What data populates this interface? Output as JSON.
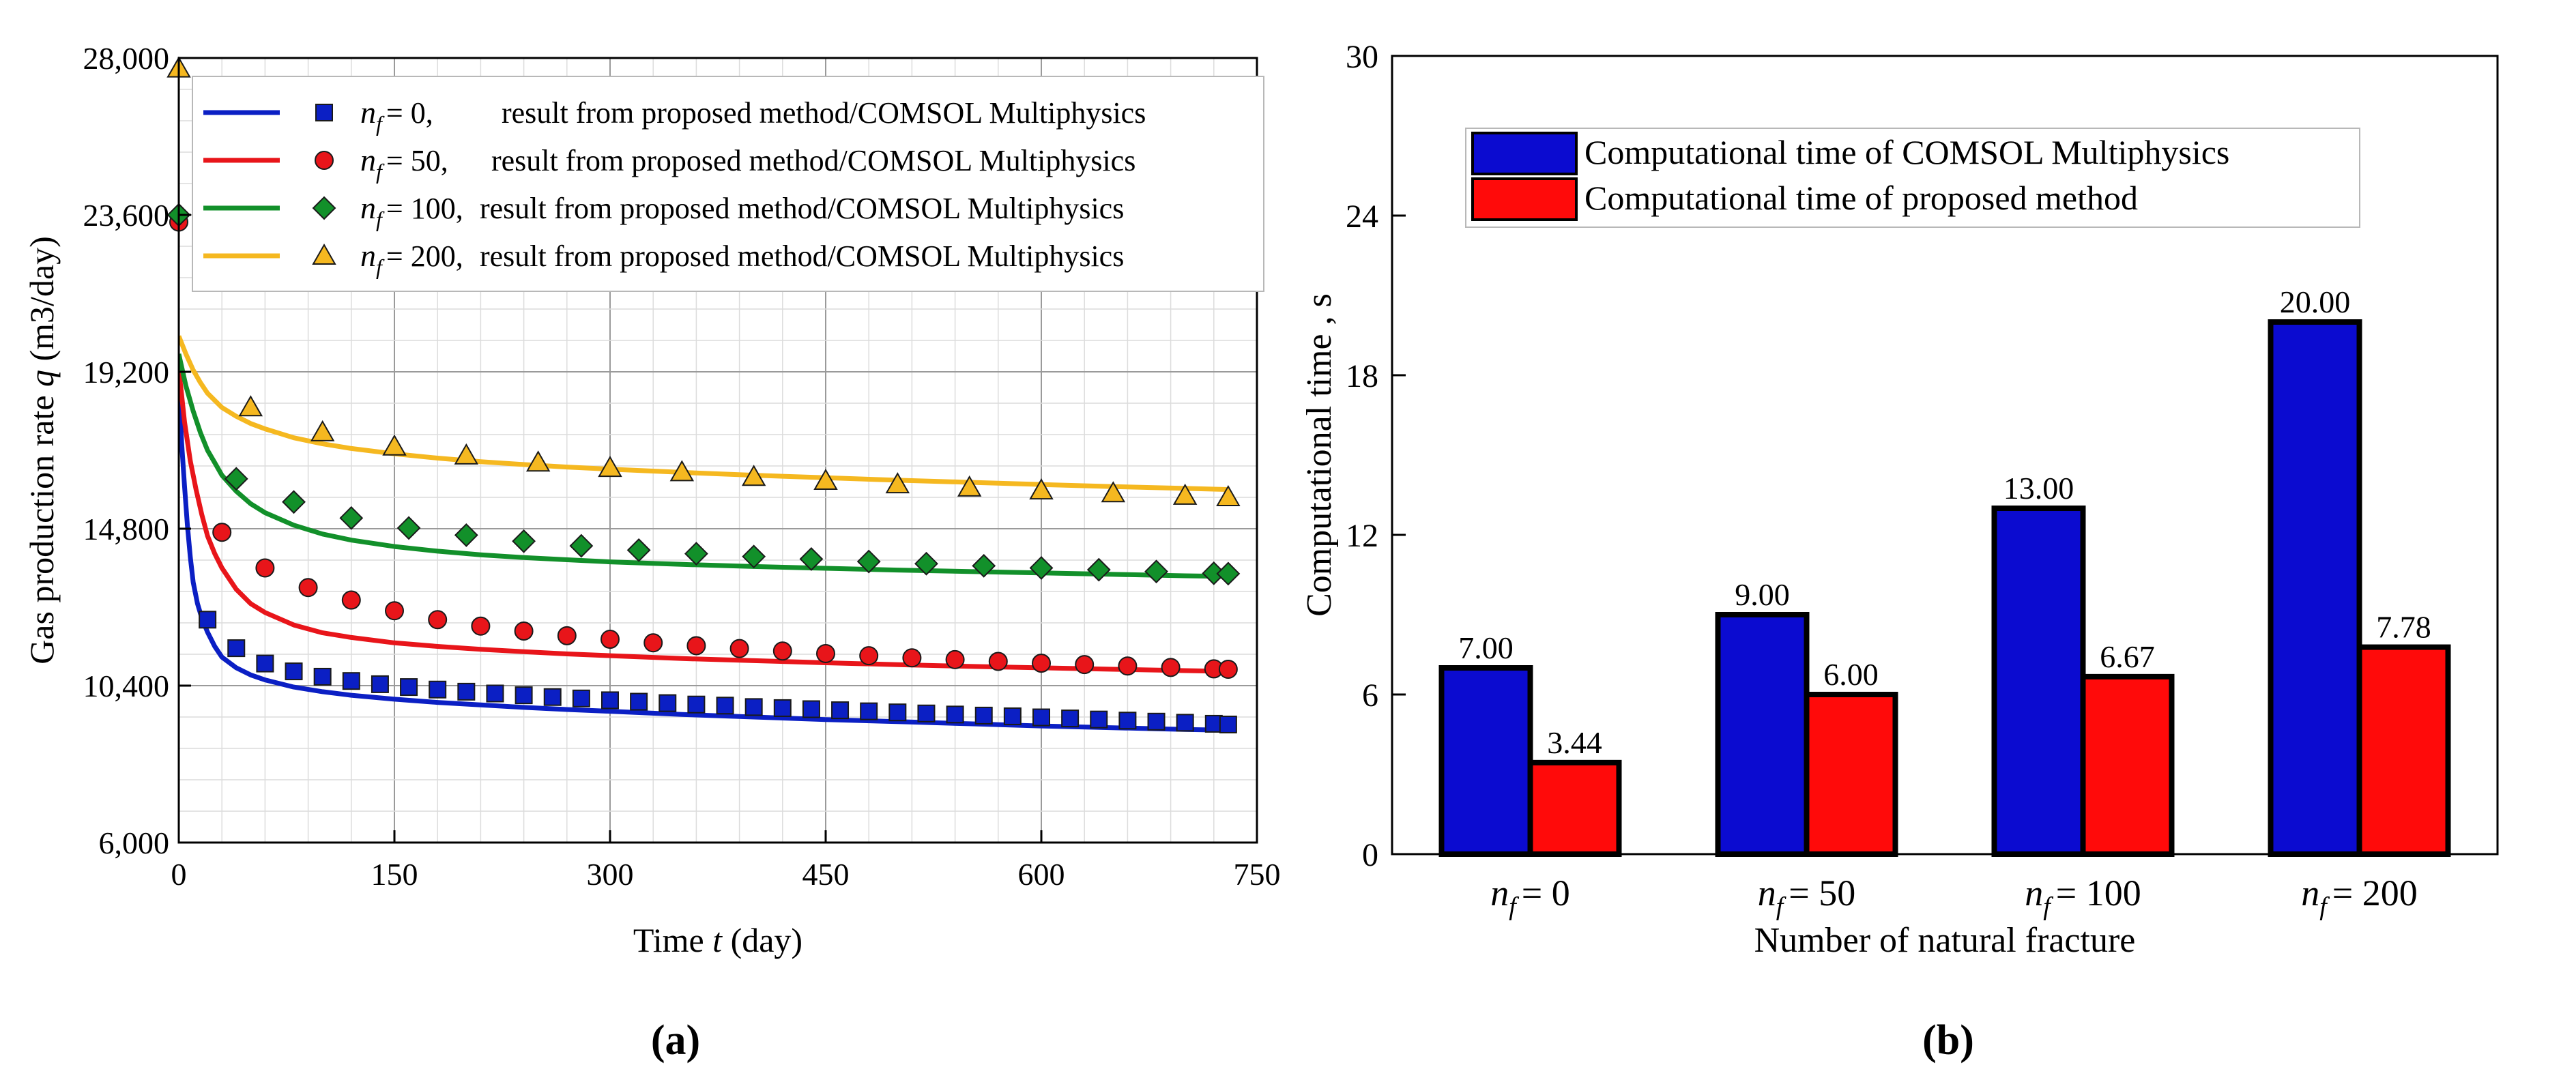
{
  "panel_labels": {
    "a": "(a)",
    "b": "(b)"
  },
  "colors": {
    "nf0": "#0b1fc4",
    "nf50": "#e8151a",
    "nf100": "#12902a",
    "nf200": "#f5b820",
    "bar_comsol": "#0b0bd0",
    "bar_proposed": "#ff0a0a"
  },
  "chart_data": [
    {
      "id": "a",
      "type": "line",
      "title": "",
      "xlabel": "Time",
      "xlabel_var": "t",
      "xlabel_unit": "(day)",
      "ylabel": "Gas production rate",
      "ylabel_var": "q",
      "ylabel_unit": "(m3/day)",
      "xlim": [
        0,
        750
      ],
      "ylim": [
        6000,
        28000
      ],
      "xticks": [
        0,
        150,
        300,
        450,
        600,
        750
      ],
      "xtick_labels": [
        "0",
        "150",
        "300",
        "450",
        "600",
        "750"
      ],
      "yticks": [
        6000,
        10400,
        14800,
        19200,
        23600,
        28000
      ],
      "ytick_labels": [
        "6,000",
        "10,400",
        "14,800",
        "19,200",
        "23,600",
        "28,000"
      ],
      "grid": true,
      "legend_position": "top-right",
      "legend_prefix": "n",
      "legend_sub": "f",
      "series": [
        {
          "key": "nf0",
          "legend_value": "= 0,",
          "legend_text": "result from proposed method/COMSOL Multiphysics",
          "marker": "square",
          "line": [
            [
              0,
              19000
            ],
            [
              2,
              17200
            ],
            [
              4,
              16000
            ],
            [
              6,
              14900
            ],
            [
              8,
              14000
            ],
            [
              10,
              13300
            ],
            [
              13,
              12700
            ],
            [
              16,
              12300
            ],
            [
              20,
              11900
            ],
            [
              25,
              11500
            ],
            [
              30,
              11200
            ],
            [
              40,
              10900
            ],
            [
              50,
              10700
            ],
            [
              60,
              10560
            ],
            [
              80,
              10360
            ],
            [
              100,
              10230
            ],
            [
              120,
              10130
            ],
            [
              150,
              10020
            ],
            [
              180,
              9930
            ],
            [
              210,
              9860
            ],
            [
              240,
              9790
            ],
            [
              270,
              9730
            ],
            [
              300,
              9680
            ],
            [
              350,
              9590
            ],
            [
              400,
              9520
            ],
            [
              450,
              9450
            ],
            [
              500,
              9390
            ],
            [
              550,
              9330
            ],
            [
              600,
              9270
            ],
            [
              650,
              9220
            ],
            [
              700,
              9170
            ],
            [
              730,
              9150
            ]
          ],
          "points": [
            [
              20,
              12250
            ],
            [
              40,
              11450
            ],
            [
              60,
              11020
            ],
            [
              80,
              10800
            ],
            [
              100,
              10650
            ],
            [
              120,
              10530
            ],
            [
              140,
              10440
            ],
            [
              160,
              10360
            ],
            [
              180,
              10290
            ],
            [
              200,
              10230
            ],
            [
              220,
              10180
            ],
            [
              240,
              10130
            ],
            [
              260,
              10080
            ],
            [
              280,
              10040
            ],
            [
              300,
              9990
            ],
            [
              320,
              9950
            ],
            [
              340,
              9910
            ],
            [
              360,
              9870
            ],
            [
              380,
              9840
            ],
            [
              400,
              9800
            ],
            [
              420,
              9770
            ],
            [
              440,
              9740
            ],
            [
              460,
              9710
            ],
            [
              480,
              9680
            ],
            [
              500,
              9650
            ],
            [
              520,
              9620
            ],
            [
              540,
              9590
            ],
            [
              560,
              9560
            ],
            [
              580,
              9540
            ],
            [
              600,
              9510
            ],
            [
              620,
              9480
            ],
            [
              640,
              9450
            ],
            [
              660,
              9420
            ],
            [
              680,
              9390
            ],
            [
              700,
              9360
            ],
            [
              720,
              9330
            ],
            [
              730,
              9310
            ]
          ]
        },
        {
          "key": "nf50",
          "legend_value": "= 50,",
          "legend_text": "result from proposed method/COMSOL Multiphysics",
          "marker": "circle",
          "line": [
            [
              0,
              19300
            ],
            [
              4,
              17800
            ],
            [
              8,
              16700
            ],
            [
              12,
              15900
            ],
            [
              16,
              15200
            ],
            [
              20,
              14600
            ],
            [
              25,
              14100
            ],
            [
              30,
              13700
            ],
            [
              40,
              13100
            ],
            [
              50,
              12700
            ],
            [
              60,
              12450
            ],
            [
              80,
              12100
            ],
            [
              100,
              11880
            ],
            [
              120,
              11750
            ],
            [
              150,
              11600
            ],
            [
              180,
              11500
            ],
            [
              210,
              11420
            ],
            [
              240,
              11350
            ],
            [
              270,
              11290
            ],
            [
              300,
              11240
            ],
            [
              350,
              11160
            ],
            [
              400,
              11100
            ],
            [
              450,
              11040
            ],
            [
              500,
              10990
            ],
            [
              550,
              10940
            ],
            [
              600,
              10900
            ],
            [
              650,
              10860
            ],
            [
              700,
              10820
            ],
            [
              730,
              10800
            ]
          ],
          "points": [
            [
              30,
              14700
            ],
            [
              60,
              13700
            ],
            [
              90,
              13150
            ],
            [
              120,
              12800
            ],
            [
              150,
              12500
            ],
            [
              180,
              12250
            ],
            [
              210,
              12070
            ],
            [
              240,
              11930
            ],
            [
              270,
              11800
            ],
            [
              300,
              11700
            ],
            [
              330,
              11600
            ],
            [
              360,
              11520
            ],
            [
              390,
              11440
            ],
            [
              420,
              11370
            ],
            [
              450,
              11300
            ],
            [
              480,
              11240
            ],
            [
              510,
              11180
            ],
            [
              540,
              11130
            ],
            [
              570,
              11080
            ],
            [
              600,
              11030
            ],
            [
              630,
              10990
            ],
            [
              660,
              10950
            ],
            [
              690,
              10910
            ],
            [
              720,
              10870
            ],
            [
              730,
              10860
            ]
          ]
        },
        {
          "key": "nf100",
          "legend_value": "= 100,",
          "legend_text": "result from proposed method/COMSOL Multiphysics",
          "marker": "diamond",
          "line": [
            [
              0,
              19700
            ],
            [
              5,
              18800
            ],
            [
              10,
              18100
            ],
            [
              15,
              17500
            ],
            [
              20,
              17000
            ],
            [
              25,
              16650
            ],
            [
              30,
              16300
            ],
            [
              40,
              15850
            ],
            [
              50,
              15500
            ],
            [
              60,
              15250
            ],
            [
              80,
              14900
            ],
            [
              100,
              14650
            ],
            [
              120,
              14480
            ],
            [
              150,
              14300
            ],
            [
              180,
              14170
            ],
            [
              210,
              14070
            ],
            [
              240,
              13990
            ],
            [
              270,
              13930
            ],
            [
              300,
              13870
            ],
            [
              350,
              13800
            ],
            [
              400,
              13740
            ],
            [
              450,
              13690
            ],
            [
              500,
              13640
            ],
            [
              550,
              13600
            ],
            [
              600,
              13560
            ],
            [
              650,
              13520
            ],
            [
              700,
              13480
            ],
            [
              730,
              13460
            ]
          ],
          "points": [
            [
              40,
              16200
            ],
            [
              80,
              15550
            ],
            [
              120,
              15100
            ],
            [
              160,
              14820
            ],
            [
              200,
              14620
            ],
            [
              240,
              14450
            ],
            [
              280,
              14320
            ],
            [
              320,
              14200
            ],
            [
              360,
              14100
            ],
            [
              400,
              14020
            ],
            [
              440,
              13950
            ],
            [
              480,
              13880
            ],
            [
              520,
              13820
            ],
            [
              560,
              13760
            ],
            [
              600,
              13700
            ],
            [
              640,
              13650
            ],
            [
              680,
              13600
            ],
            [
              720,
              13550
            ],
            [
              730,
              13540
            ]
          ]
        },
        {
          "key": "nf200",
          "legend_value": "= 200,",
          "legend_text": "result from proposed method/COMSOL Multiphysics",
          "marker": "triangle",
          "line": [
            [
              0,
              20200
            ],
            [
              5,
              19700
            ],
            [
              10,
              19250
            ],
            [
              15,
              18900
            ],
            [
              20,
              18600
            ],
            [
              30,
              18200
            ],
            [
              40,
              17950
            ],
            [
              50,
              17750
            ],
            [
              60,
              17600
            ],
            [
              80,
              17350
            ],
            [
              100,
              17180
            ],
            [
              120,
              17050
            ],
            [
              150,
              16900
            ],
            [
              180,
              16780
            ],
            [
              210,
              16680
            ],
            [
              240,
              16600
            ],
            [
              270,
              16530
            ],
            [
              300,
              16470
            ],
            [
              350,
              16380
            ],
            [
              400,
              16300
            ],
            [
              450,
              16230
            ],
            [
              500,
              16160
            ],
            [
              550,
              16100
            ],
            [
              600,
              16040
            ],
            [
              650,
              15980
            ],
            [
              700,
              15930
            ],
            [
              730,
              15900
            ]
          ],
          "points": [
            [
              50,
              18200
            ],
            [
              100,
              17500
            ],
            [
              150,
              17100
            ],
            [
              200,
              16850
            ],
            [
              250,
              16650
            ],
            [
              300,
              16500
            ],
            [
              350,
              16380
            ],
            [
              400,
              16250
            ],
            [
              450,
              16140
            ],
            [
              500,
              16040
            ],
            [
              550,
              15950
            ],
            [
              600,
              15870
            ],
            [
              650,
              15790
            ],
            [
              700,
              15720
            ],
            [
              730,
              15680
            ]
          ]
        }
      ],
      "initial_points": {
        "nf100": [
          0,
          23600
        ],
        "nf50": [
          0,
          23400
        ],
        "nf200": [
          0,
          27700
        ]
      }
    },
    {
      "id": "b",
      "type": "bar",
      "title": "",
      "xlabel": "Number of natural fracture",
      "ylabel": "Computational time , s",
      "ylim": [
        0,
        30
      ],
      "yticks": [
        0,
        6,
        12,
        18,
        24,
        30
      ],
      "ytick_labels": [
        "0",
        "6",
        "12",
        "18",
        "24",
        "30"
      ],
      "grid": false,
      "legend_position": "top-left",
      "category_prefix": "n",
      "category_sub": "f",
      "categories": [
        "= 0",
        "= 50",
        "= 100",
        "= 200"
      ],
      "series": [
        {
          "name": "Computational time of COMSOL Multiphysics",
          "key": "bar_comsol",
          "values": [
            7.0,
            9.0,
            13.0,
            20.0
          ],
          "labels": [
            "7.00",
            "9.00",
            "13.00",
            "20.00"
          ]
        },
        {
          "name": "Computational time of proposed method",
          "key": "bar_proposed",
          "values": [
            3.44,
            6.0,
            6.67,
            7.78
          ],
          "labels": [
            "3.44",
            "6.00",
            "6.67",
            "7.78"
          ]
        }
      ]
    }
  ]
}
